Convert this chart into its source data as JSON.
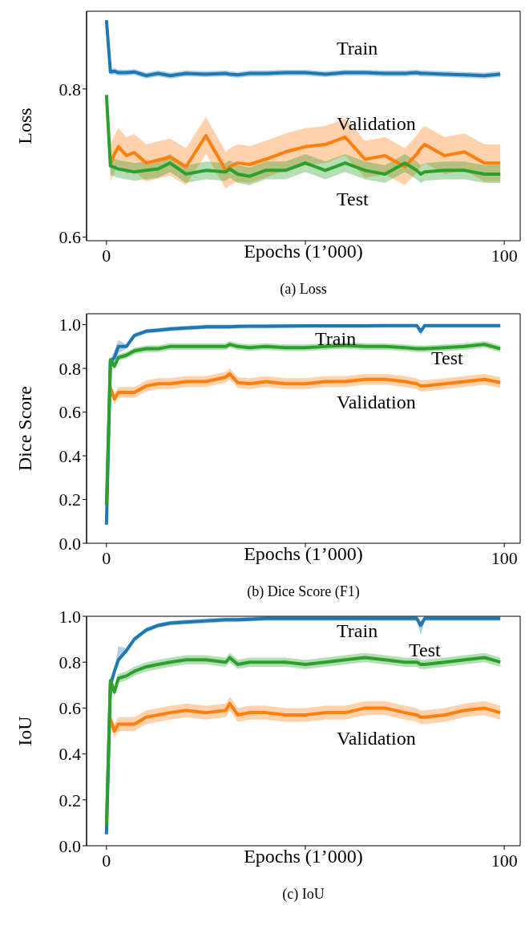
{
  "chart_data": [
    {
      "type": "line",
      "title": "(a) Loss",
      "xlabel": "Epochs (1’000)",
      "ylabel": "Loss",
      "x": [
        0,
        1,
        2,
        3,
        5,
        7,
        10,
        13,
        16,
        20,
        25,
        30,
        31,
        33,
        36,
        40,
        45,
        50,
        55,
        60,
        65,
        70,
        75,
        78,
        79,
        80,
        85,
        90,
        95,
        99
      ],
      "xlim": [
        -5,
        104
      ],
      "xticks": [
        {
          "value": 0,
          "label": "0"
        },
        {
          "value": 50,
          "label": null
        },
        {
          "value": 100,
          "label": "100"
        }
      ],
      "ylim": [
        0.595,
        0.905
      ],
      "yticks": [
        {
          "value": 0.6,
          "label": "0.6"
        },
        {
          "value": 0.8,
          "label": "0.8"
        }
      ],
      "grid": false,
      "legend": false,
      "series": [
        {
          "name": "Train",
          "color": "#1f77b4",
          "values": [
            0.893,
            0.823,
            0.824,
            0.822,
            0.822,
            0.823,
            0.818,
            0.821,
            0.818,
            0.821,
            0.82,
            0.821,
            0.82,
            0.819,
            0.821,
            0.821,
            0.822,
            0.822,
            0.82,
            0.822,
            0.822,
            0.821,
            0.821,
            0.822,
            0.821,
            0.821,
            0.82,
            0.819,
            0.818,
            0.82
          ],
          "lower": [
            0.889,
            0.819,
            0.82,
            0.818,
            0.818,
            0.819,
            0.814,
            0.817,
            0.814,
            0.817,
            0.816,
            0.817,
            0.816,
            0.815,
            0.817,
            0.817,
            0.818,
            0.818,
            0.816,
            0.818,
            0.818,
            0.817,
            0.817,
            0.818,
            0.817,
            0.817,
            0.816,
            0.815,
            0.814,
            0.816
          ],
          "upper": [
            0.897,
            0.827,
            0.828,
            0.826,
            0.826,
            0.827,
            0.822,
            0.825,
            0.822,
            0.825,
            0.824,
            0.825,
            0.824,
            0.823,
            0.825,
            0.825,
            0.826,
            0.826,
            0.824,
            0.826,
            0.826,
            0.825,
            0.825,
            0.826,
            0.825,
            0.825,
            0.824,
            0.823,
            0.822,
            0.824
          ]
        },
        {
          "name": "Validation",
          "color": "#ff7f0e",
          "values": [
            null,
            0.7,
            0.712,
            0.722,
            0.71,
            0.714,
            0.7,
            0.704,
            0.708,
            0.695,
            0.737,
            0.69,
            0.695,
            0.7,
            0.698,
            0.705,
            0.715,
            0.722,
            0.725,
            0.735,
            0.705,
            0.71,
            0.695,
            0.712,
            0.72,
            0.725,
            0.71,
            0.715,
            0.7,
            0.7
          ],
          "lower": [
            null,
            0.675,
            0.687,
            0.697,
            0.685,
            0.689,
            0.675,
            0.679,
            0.683,
            0.67,
            0.712,
            0.665,
            0.67,
            0.675,
            0.673,
            0.68,
            0.69,
            0.697,
            0.7,
            0.71,
            0.68,
            0.685,
            0.67,
            0.687,
            0.695,
            0.7,
            0.685,
            0.69,
            0.675,
            0.675
          ],
          "upper": [
            null,
            0.725,
            0.737,
            0.747,
            0.735,
            0.739,
            0.725,
            0.729,
            0.733,
            0.72,
            0.762,
            0.715,
            0.72,
            0.725,
            0.723,
            0.73,
            0.74,
            0.747,
            0.75,
            0.76,
            0.73,
            0.735,
            0.72,
            0.737,
            0.745,
            0.75,
            0.735,
            0.74,
            0.725,
            0.725
          ]
        },
        {
          "name": "Test",
          "color": "#2ca02c",
          "values": [
            0.792,
            0.696,
            0.694,
            0.692,
            0.69,
            0.688,
            0.69,
            0.692,
            0.7,
            0.685,
            0.69,
            0.688,
            0.692,
            0.685,
            0.682,
            0.69,
            0.69,
            0.7,
            0.69,
            0.7,
            0.69,
            0.685,
            0.7,
            0.69,
            0.685,
            0.688,
            0.69,
            0.69,
            0.685,
            0.685
          ],
          "lower": [
            0.792,
            0.684,
            0.682,
            0.68,
            0.678,
            0.676,
            0.678,
            0.68,
            0.688,
            0.673,
            0.678,
            0.676,
            0.68,
            0.673,
            0.67,
            0.678,
            0.678,
            0.688,
            0.678,
            0.688,
            0.678,
            0.673,
            0.688,
            0.678,
            0.673,
            0.676,
            0.678,
            0.678,
            0.673,
            0.673
          ],
          "upper": [
            0.792,
            0.708,
            0.706,
            0.704,
            0.702,
            0.7,
            0.702,
            0.704,
            0.712,
            0.697,
            0.702,
            0.7,
            0.704,
            0.697,
            0.694,
            0.702,
            0.702,
            0.712,
            0.702,
            0.712,
            0.702,
            0.697,
            0.712,
            0.702,
            0.697,
            0.7,
            0.702,
            0.702,
            0.697,
            0.697
          ]
        }
      ]
    },
    {
      "type": "line",
      "title": "(b) Dice Score (F1)",
      "xlabel": "Epochs (1’000)",
      "ylabel": "Dice Score",
      "x": [
        0,
        1,
        2,
        3,
        5,
        7,
        10,
        13,
        16,
        20,
        25,
        30,
        31,
        33,
        36,
        40,
        45,
        50,
        55,
        60,
        65,
        70,
        75,
        78,
        79,
        80,
        85,
        90,
        95,
        99
      ],
      "xlim": [
        -5,
        104
      ],
      "xticks": [
        {
          "value": 0,
          "label": "0"
        },
        {
          "value": 50,
          "label": null
        },
        {
          "value": 100,
          "label": "100"
        }
      ],
      "ylim": [
        0,
        1.05
      ],
      "yticks": [
        {
          "value": 0,
          "label": "0.0"
        },
        {
          "value": 0.2,
          "label": "0.2"
        },
        {
          "value": 0.4,
          "label": "0.4"
        },
        {
          "value": 0.6,
          "label": "0.6"
        },
        {
          "value": 0.8,
          "label": "0.8"
        },
        {
          "value": 1,
          "label": "1.0"
        }
      ],
      "grid": false,
      "legend": false,
      "series": [
        {
          "name": "Train",
          "color": "#1f77b4",
          "values": [
            0.085,
            0.83,
            0.85,
            0.9,
            0.9,
            0.95,
            0.97,
            0.975,
            0.98,
            0.985,
            0.99,
            0.99,
            0.99,
            0.992,
            0.993,
            0.993,
            0.994,
            0.995,
            0.995,
            0.995,
            0.995,
            0.996,
            0.996,
            0.996,
            0.97,
            0.996,
            0.996,
            0.996,
            0.996,
            0.996
          ],
          "lower": [
            0.085,
            0.82,
            0.82,
            0.87,
            0.89,
            0.94,
            0.96,
            0.965,
            0.97,
            0.975,
            0.98,
            0.98,
            0.98,
            0.982,
            0.983,
            0.983,
            0.984,
            0.985,
            0.985,
            0.985,
            0.985,
            0.986,
            0.986,
            0.986,
            0.95,
            0.986,
            0.986,
            0.986,
            0.986,
            0.986
          ],
          "upper": [
            0.085,
            0.84,
            0.88,
            0.93,
            0.91,
            0.96,
            0.98,
            0.985,
            0.99,
            0.995,
            1.0,
            1.0,
            1.0,
            1.0,
            1.0,
            1.0,
            1.0,
            1.0,
            1.0,
            1.0,
            1.0,
            1.0,
            1.0,
            1.0,
            0.98,
            1.0,
            1.0,
            1.0,
            1.0,
            1.0
          ]
        },
        {
          "name": "Validation",
          "color": "#ff7f0e",
          "values": [
            null,
            0.71,
            0.66,
            0.69,
            0.69,
            0.69,
            0.72,
            0.73,
            0.73,
            0.74,
            0.74,
            0.76,
            0.775,
            0.735,
            0.73,
            0.74,
            0.73,
            0.73,
            0.74,
            0.74,
            0.75,
            0.75,
            0.74,
            0.73,
            0.72,
            0.72,
            0.73,
            0.74,
            0.75,
            0.735
          ],
          "lower": [
            null,
            0.685,
            0.635,
            0.665,
            0.665,
            0.665,
            0.695,
            0.705,
            0.705,
            0.715,
            0.715,
            0.735,
            0.75,
            0.71,
            0.705,
            0.715,
            0.705,
            0.705,
            0.715,
            0.715,
            0.725,
            0.725,
            0.715,
            0.705,
            0.695,
            0.695,
            0.705,
            0.715,
            0.725,
            0.71
          ],
          "upper": [
            null,
            0.735,
            0.685,
            0.715,
            0.715,
            0.715,
            0.745,
            0.755,
            0.755,
            0.765,
            0.765,
            0.785,
            0.8,
            0.76,
            0.755,
            0.765,
            0.755,
            0.755,
            0.765,
            0.765,
            0.775,
            0.775,
            0.765,
            0.755,
            0.745,
            0.745,
            0.755,
            0.765,
            0.775,
            0.76
          ]
        },
        {
          "name": "Test",
          "color": "#2ca02c",
          "values": [
            0.175,
            0.84,
            0.81,
            0.85,
            0.86,
            0.88,
            0.89,
            0.89,
            0.9,
            0.9,
            0.9,
            0.9,
            0.91,
            0.9,
            0.895,
            0.9,
            0.895,
            0.895,
            0.9,
            0.905,
            0.9,
            0.9,
            0.895,
            0.89,
            0.89,
            0.89,
            0.895,
            0.9,
            0.91,
            0.89
          ],
          "lower": [
            0.175,
            0.825,
            0.795,
            0.835,
            0.845,
            0.865,
            0.875,
            0.875,
            0.885,
            0.885,
            0.885,
            0.885,
            0.895,
            0.885,
            0.88,
            0.885,
            0.88,
            0.88,
            0.885,
            0.89,
            0.885,
            0.885,
            0.88,
            0.875,
            0.875,
            0.875,
            0.88,
            0.885,
            0.895,
            0.875
          ],
          "upper": [
            0.175,
            0.855,
            0.825,
            0.865,
            0.875,
            0.895,
            0.905,
            0.905,
            0.915,
            0.915,
            0.915,
            0.915,
            0.925,
            0.915,
            0.91,
            0.915,
            0.91,
            0.91,
            0.915,
            0.92,
            0.915,
            0.915,
            0.91,
            0.905,
            0.905,
            0.905,
            0.91,
            0.915,
            0.925,
            0.905
          ]
        }
      ]
    },
    {
      "type": "line",
      "title": "(c) IoU",
      "xlabel": "Epochs (1’000)",
      "ylabel": "IoU",
      "x": [
        0,
        1,
        2,
        3,
        5,
        7,
        10,
        13,
        16,
        20,
        25,
        30,
        31,
        33,
        36,
        40,
        45,
        50,
        55,
        60,
        65,
        70,
        75,
        78,
        79,
        80,
        85,
        90,
        95,
        99
      ],
      "xlim": [
        -5,
        104
      ],
      "xticks": [
        {
          "value": 0,
          "label": "0"
        },
        {
          "value": 50,
          "label": null
        },
        {
          "value": 100,
          "label": "100"
        }
      ],
      "ylim": [
        0,
        1
      ],
      "yticks": [
        {
          "value": 0,
          "label": "0.0"
        },
        {
          "value": 0.2,
          "label": "0.2"
        },
        {
          "value": 0.4,
          "label": "0.4"
        },
        {
          "value": 0.6,
          "label": "0.6"
        },
        {
          "value": 0.8,
          "label": "0.8"
        },
        {
          "value": 1,
          "label": "1.0"
        }
      ],
      "grid": false,
      "legend": false,
      "series": [
        {
          "name": "Train",
          "color": "#1f77b4",
          "values": [
            0.05,
            0.7,
            0.76,
            0.81,
            0.85,
            0.9,
            0.94,
            0.96,
            0.97,
            0.975,
            0.98,
            0.985,
            0.985,
            0.985,
            0.987,
            0.99,
            0.99,
            0.99,
            0.99,
            0.99,
            0.99,
            0.99,
            0.99,
            0.99,
            0.96,
            0.99,
            0.99,
            0.99,
            0.99,
            0.99
          ],
          "lower": [
            0.05,
            0.69,
            0.75,
            0.8,
            0.84,
            0.89,
            0.93,
            0.95,
            0.96,
            0.965,
            0.97,
            0.975,
            0.975,
            0.975,
            0.977,
            0.98,
            0.98,
            0.98,
            0.98,
            0.98,
            0.98,
            0.98,
            0.98,
            0.98,
            0.92,
            0.98,
            0.98,
            0.98,
            0.98,
            0.98
          ],
          "upper": [
            0.05,
            0.71,
            0.77,
            0.87,
            0.86,
            0.91,
            0.95,
            0.97,
            0.98,
            0.985,
            0.99,
            0.995,
            0.995,
            0.995,
            0.997,
            1.0,
            1.0,
            1.0,
            1.0,
            1.0,
            1.0,
            1.0,
            1.0,
            1.0,
            0.98,
            1.0,
            1.0,
            1.0,
            1.0,
            1.0
          ]
        },
        {
          "name": "Validation",
          "color": "#ff7f0e",
          "values": [
            null,
            0.55,
            0.5,
            0.53,
            0.53,
            0.53,
            0.56,
            0.57,
            0.58,
            0.59,
            0.58,
            0.59,
            0.62,
            0.57,
            0.58,
            0.58,
            0.57,
            0.57,
            0.58,
            0.58,
            0.6,
            0.6,
            0.58,
            0.57,
            0.56,
            0.56,
            0.57,
            0.59,
            0.6,
            0.58
          ],
          "lower": [
            null,
            0.52,
            0.47,
            0.5,
            0.5,
            0.5,
            0.53,
            0.54,
            0.55,
            0.56,
            0.55,
            0.56,
            0.59,
            0.54,
            0.55,
            0.55,
            0.54,
            0.54,
            0.55,
            0.55,
            0.57,
            0.57,
            0.55,
            0.54,
            0.53,
            0.53,
            0.54,
            0.56,
            0.57,
            0.55
          ],
          "upper": [
            null,
            0.58,
            0.53,
            0.56,
            0.56,
            0.56,
            0.59,
            0.6,
            0.61,
            0.62,
            0.61,
            0.62,
            0.65,
            0.6,
            0.61,
            0.61,
            0.6,
            0.6,
            0.61,
            0.61,
            0.63,
            0.63,
            0.61,
            0.6,
            0.59,
            0.59,
            0.6,
            0.62,
            0.63,
            0.61
          ]
        },
        {
          "name": "Test",
          "color": "#2ca02c",
          "values": [
            0.09,
            0.72,
            0.67,
            0.73,
            0.74,
            0.76,
            0.78,
            0.79,
            0.8,
            0.81,
            0.81,
            0.8,
            0.82,
            0.79,
            0.8,
            0.8,
            0.8,
            0.79,
            0.8,
            0.81,
            0.82,
            0.81,
            0.8,
            0.8,
            0.79,
            0.79,
            0.8,
            0.81,
            0.82,
            0.8
          ],
          "lower": [
            0.09,
            0.7,
            0.65,
            0.71,
            0.72,
            0.74,
            0.76,
            0.77,
            0.78,
            0.79,
            0.79,
            0.78,
            0.8,
            0.77,
            0.78,
            0.78,
            0.78,
            0.77,
            0.78,
            0.79,
            0.8,
            0.79,
            0.78,
            0.78,
            0.77,
            0.77,
            0.78,
            0.79,
            0.8,
            0.78
          ],
          "upper": [
            0.09,
            0.74,
            0.69,
            0.75,
            0.76,
            0.78,
            0.8,
            0.81,
            0.82,
            0.83,
            0.83,
            0.82,
            0.84,
            0.81,
            0.82,
            0.82,
            0.82,
            0.81,
            0.82,
            0.83,
            0.84,
            0.83,
            0.82,
            0.82,
            0.81,
            0.81,
            0.82,
            0.83,
            0.84,
            0.82
          ]
        }
      ]
    }
  ]
}
